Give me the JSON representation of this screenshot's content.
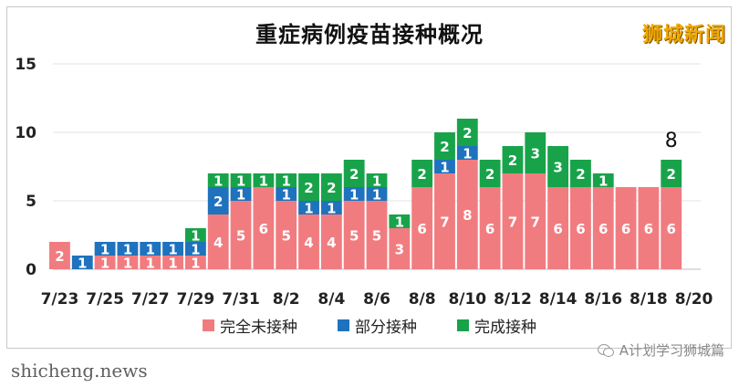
{
  "header": {
    "title": "重症病例疫苗接种概况",
    "brand": "狮城新闻"
  },
  "footer": {
    "left": "shicheng.news",
    "right": "A计划学习狮城篇"
  },
  "colors": {
    "unvaccinated": "#f17c80",
    "partial": "#1f72bd",
    "full": "#18a34a"
  },
  "chart_data": {
    "type": "bar",
    "stacked": true,
    "title": "重症病例疫苗接种概况",
    "ylim": [
      0,
      15
    ],
    "yticks": [
      0,
      5,
      10,
      15
    ],
    "grid": true,
    "legend_position": "bottom",
    "categories": [
      "7/23",
      "7/24",
      "7/25",
      "7/26",
      "7/27",
      "7/28",
      "7/29",
      "7/30",
      "7/31",
      "8/1",
      "8/2",
      "8/3",
      "8/4",
      "8/5",
      "8/6",
      "8/7",
      "8/8",
      "8/9",
      "8/10",
      "8/11",
      "8/12",
      "8/13",
      "8/14",
      "8/15",
      "8/16",
      "8/17",
      "8/18",
      "8/19",
      "8/20"
    ],
    "xtick_labels": [
      "7/23",
      "7/25",
      "7/27",
      "7/29",
      "7/31",
      "8/2",
      "8/4",
      "8/6",
      "8/8",
      "8/10",
      "8/12",
      "8/14",
      "8/16",
      "8/18",
      "8/20"
    ],
    "series": [
      {
        "name": "完全未接种",
        "values": [
          2,
          0,
          1,
          1,
          1,
          1,
          1,
          4,
          5,
          6,
          5,
          4,
          4,
          5,
          5,
          3,
          6,
          7,
          8,
          6,
          7,
          7,
          6,
          6,
          6,
          6,
          6,
          6,
          null
        ]
      },
      {
        "name": "部分接种",
        "values": [
          0,
          1,
          1,
          1,
          1,
          1,
          1,
          2,
          1,
          0,
          1,
          1,
          1,
          1,
          1,
          0,
          0,
          1,
          1,
          0,
          0,
          0,
          0,
          0,
          0,
          0,
          0,
          0,
          null
        ]
      },
      {
        "name": "完成接种",
        "values": [
          0,
          0,
          0,
          0,
          0,
          0,
          1,
          1,
          1,
          1,
          1,
          2,
          2,
          2,
          1,
          1,
          2,
          2,
          2,
          2,
          2,
          3,
          3,
          2,
          1,
          0,
          0,
          2,
          null
        ]
      }
    ],
    "annotations": [
      {
        "category": "8/19",
        "text": "8"
      }
    ]
  }
}
